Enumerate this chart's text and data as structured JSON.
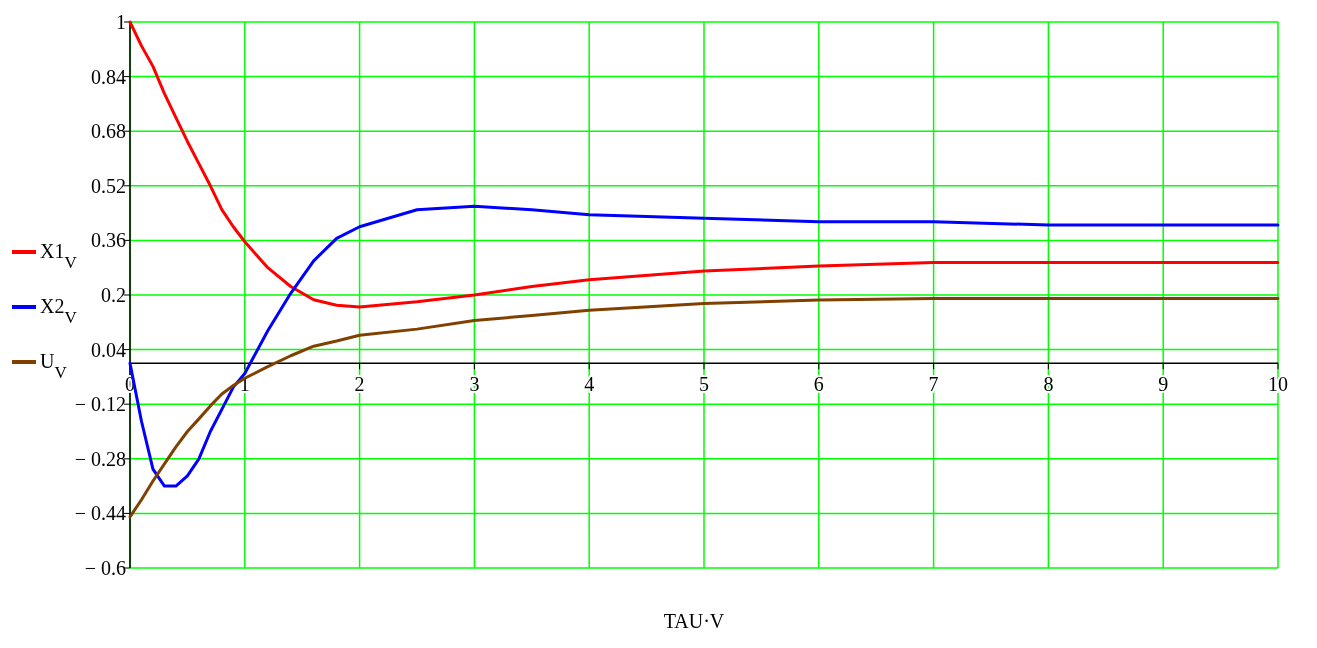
{
  "chart_data": {
    "type": "line",
    "xlabel": "TAU·V",
    "x": [
      0,
      0.1,
      0.2,
      0.3,
      0.4,
      0.5,
      0.6,
      0.7,
      0.8,
      0.9,
      1,
      1.2,
      1.4,
      1.6,
      1.8,
      2,
      2.5,
      3,
      3.5,
      4,
      5,
      6,
      7,
      8,
      10
    ],
    "series": [
      {
        "name": "X1$_{V}$",
        "color": "#ff0000",
        "values": [
          1,
          0.93,
          0.87,
          0.79,
          0.72,
          0.65,
          0.585,
          0.52,
          0.45,
          0.4,
          0.356,
          0.28,
          0.225,
          0.186,
          0.17,
          0.165,
          0.18,
          0.2,
          0.225,
          0.245,
          0.27,
          0.285,
          0.295,
          0.295,
          0.295
        ]
      },
      {
        "name": "X2$_{V}$",
        "color": "#0000ff",
        "values": [
          0,
          -0.17,
          -0.31,
          -0.36,
          -0.36,
          -0.33,
          -0.28,
          -0.2,
          -0.135,
          -0.07,
          -0.03,
          0.095,
          0.205,
          0.3,
          0.366,
          0.4,
          0.45,
          0.46,
          0.45,
          0.435,
          0.425,
          0.415,
          0.415,
          0.405,
          0.405
        ]
      },
      {
        "name": "U$_{V}$",
        "color": "#804000",
        "values": [
          -0.45,
          -0.4,
          -0.345,
          -0.295,
          -0.245,
          -0.2,
          -0.163,
          -0.125,
          -0.09,
          -0.065,
          -0.044,
          -0.01,
          0.022,
          0.05,
          0.065,
          0.082,
          0.1,
          0.125,
          0.14,
          0.155,
          0.175,
          0.185,
          0.19,
          0.19,
          0.19
        ]
      }
    ],
    "xlim": [
      0,
      10
    ],
    "xticks": [
      0,
      1,
      2,
      3,
      4,
      5,
      6,
      7,
      8,
      9,
      10
    ],
    "ylim": [
      -0.6,
      1
    ],
    "yticks": [
      {
        "value": -0.6,
        "label": "− 0.6"
      },
      {
        "value": -0.44,
        "label": "− 0.44"
      },
      {
        "value": -0.28,
        "label": "− 0.28"
      },
      {
        "value": -0.12,
        "label": "− 0.12"
      },
      0.04,
      0.2,
      0.36,
      0.52,
      0.68,
      0.84,
      1
    ],
    "grid": true,
    "legend": "left",
    "line_style": "solid",
    "marker": "none"
  }
}
